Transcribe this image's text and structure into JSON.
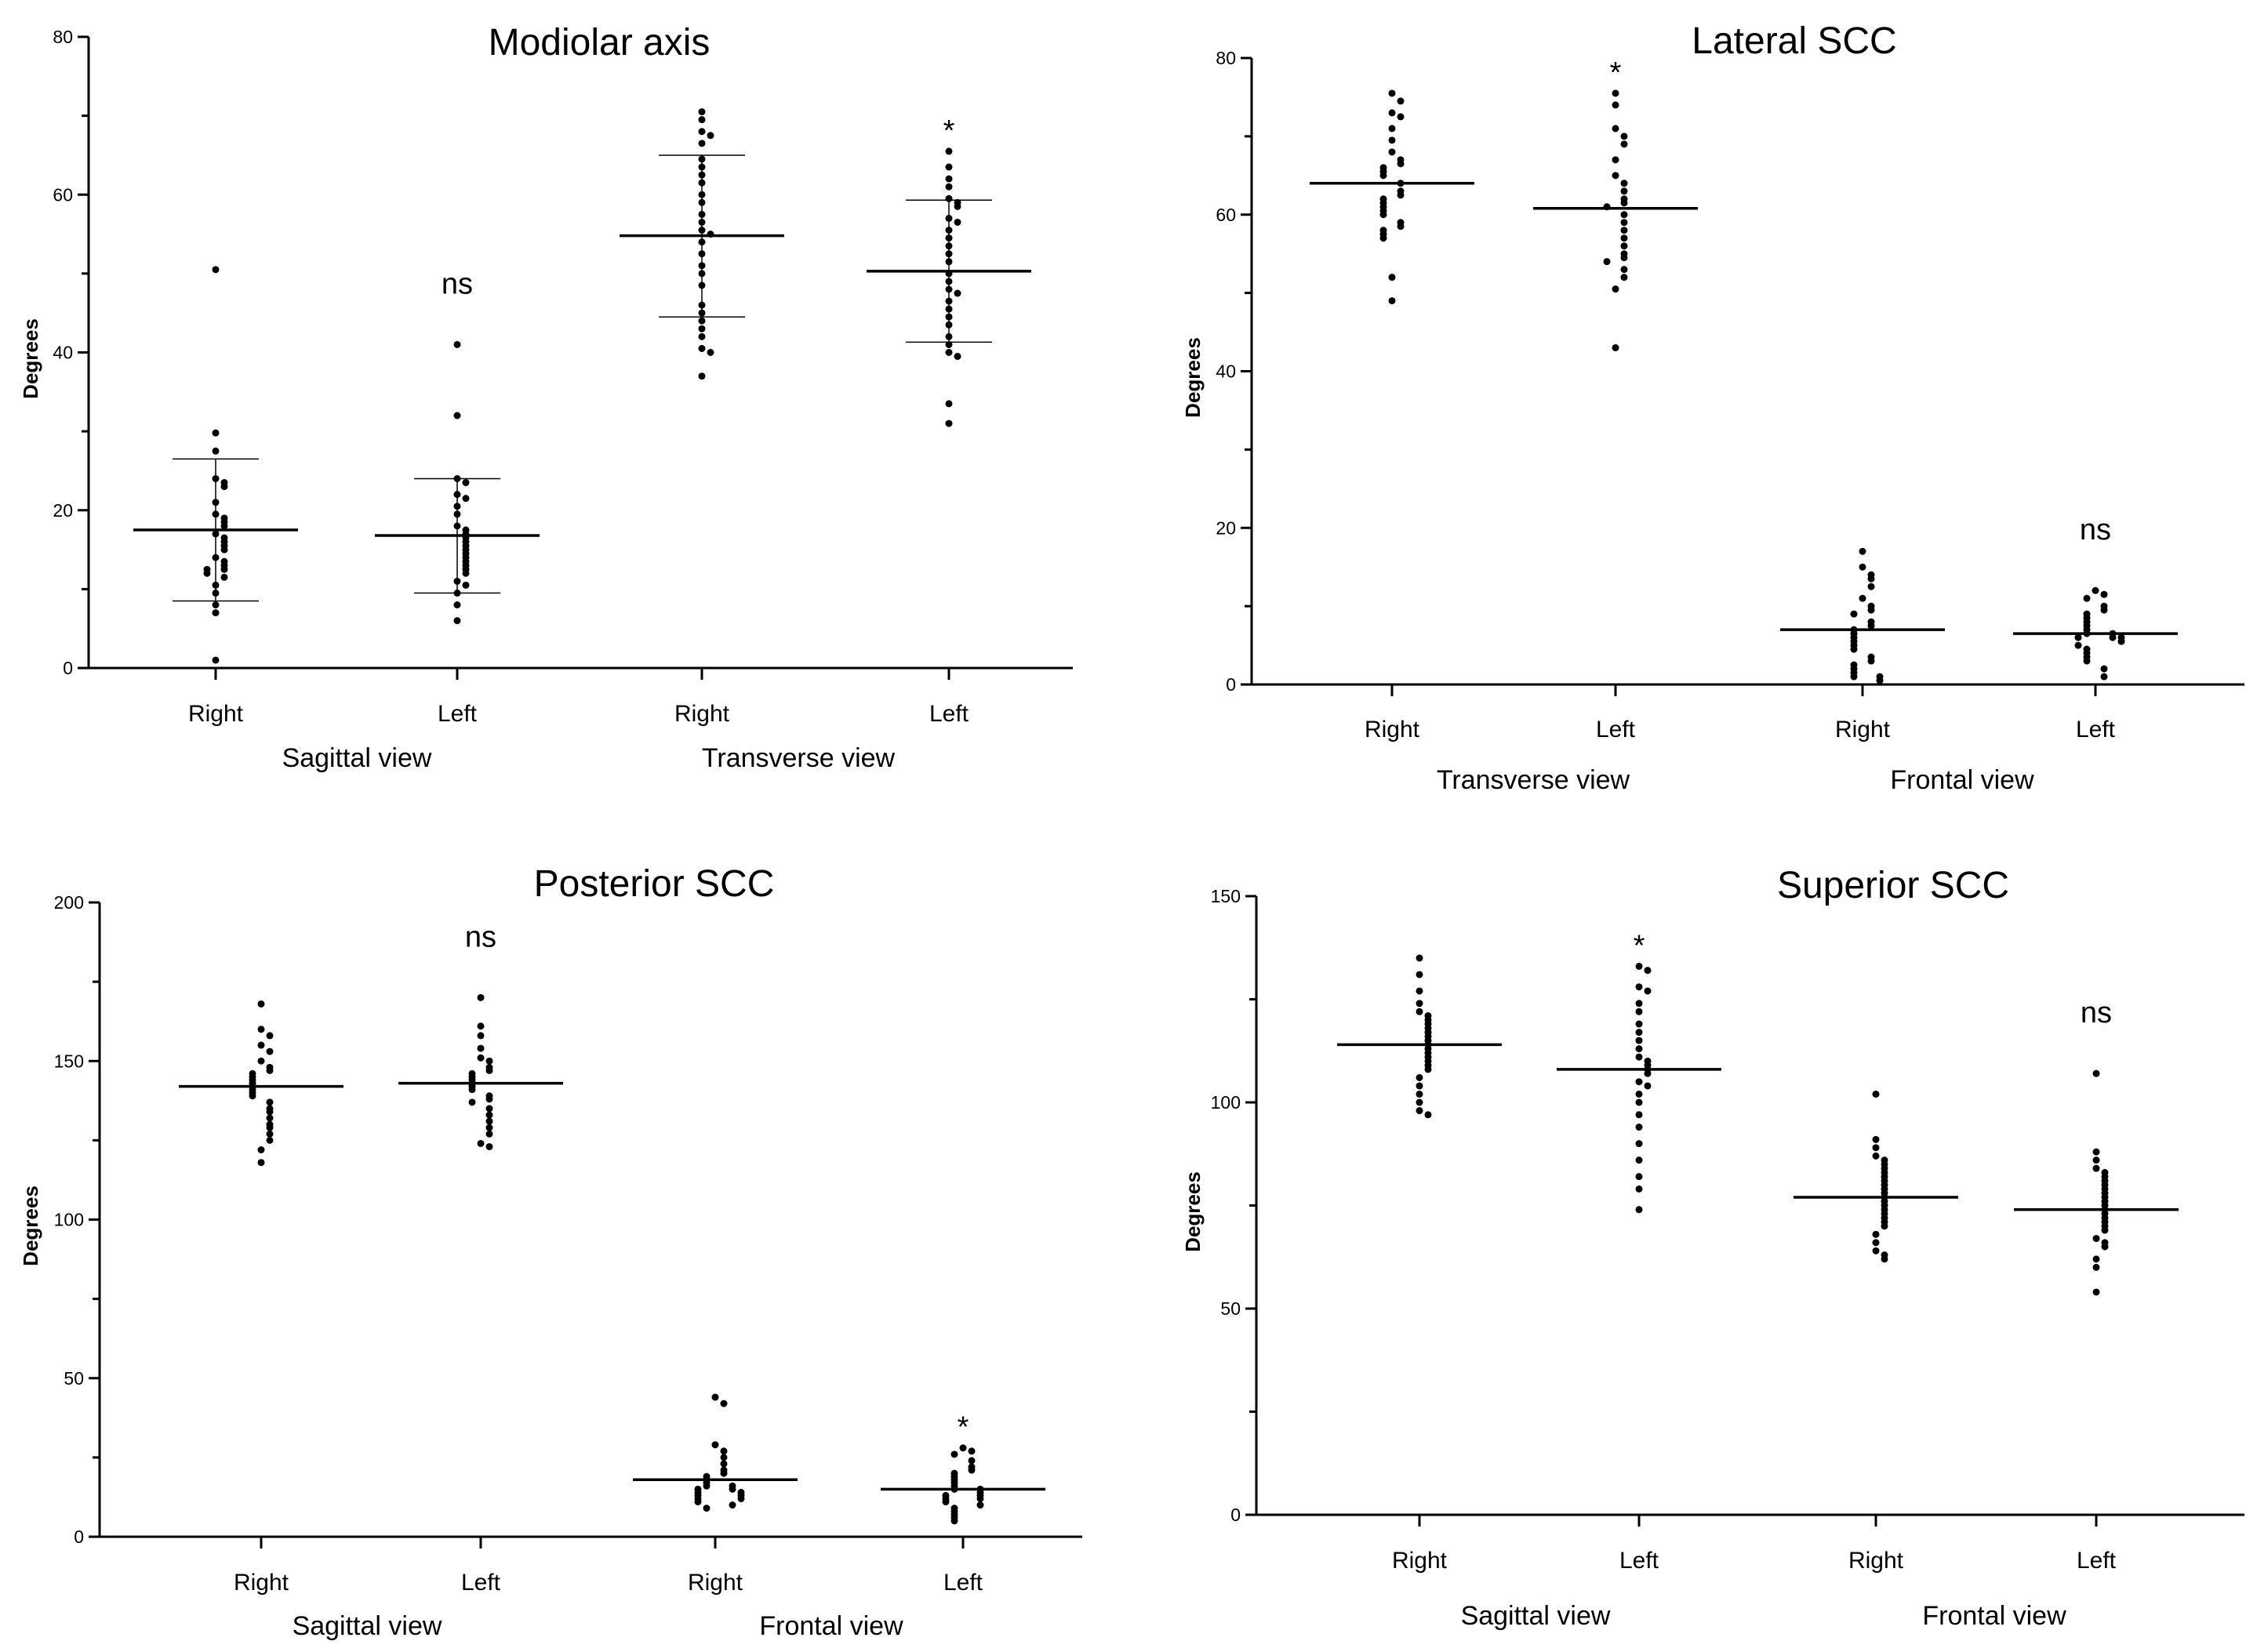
{
  "chart_data": [
    {
      "type": "scatter",
      "title": "Modiolar axis",
      "ylabel": "Degrees",
      "ylim": [
        0,
        80
      ],
      "yticks": [
        0,
        20,
        40,
        60,
        80
      ],
      "error_bars": true,
      "groups": [
        {
          "label": "Sagittal view",
          "categories": [
            0,
            1
          ]
        },
        {
          "label": "Transverse view",
          "categories": [
            2,
            3
          ]
        }
      ],
      "categories": [
        {
          "label": "Right",
          "mean": 17.5,
          "err_low": 8.5,
          "err_high": 26.5,
          "annotation": "",
          "values": [
            50.5,
            29.8,
            27.5,
            24,
            23.5,
            23,
            21,
            19.5,
            19,
            18.5,
            18,
            17,
            16.5,
            16,
            15.5,
            15,
            14,
            13.5,
            13,
            12.5,
            12.5,
            12,
            11.5,
            10.5,
            9.5,
            8,
            7,
            1
          ]
        },
        {
          "label": "Left",
          "mean": 16.8,
          "err_low": 9.5,
          "err_high": 24,
          "annotation": "ns",
          "values": [
            41,
            32,
            24,
            23.5,
            22,
            21.5,
            20.5,
            19.5,
            18,
            17.5,
            17,
            16.5,
            16,
            15.5,
            15,
            14.5,
            14,
            13.5,
            13,
            12.5,
            12,
            11,
            10.5,
            9.5,
            8,
            6
          ]
        },
        {
          "label": "Right",
          "mean": 54.8,
          "err_low": 44.5,
          "err_high": 65,
          "annotation": "",
          "values": [
            70.5,
            69.5,
            68,
            67.5,
            66.5,
            64.5,
            63.5,
            62.5,
            61.5,
            60,
            59,
            57.5,
            56.5,
            55.5,
            55,
            54,
            52.5,
            51,
            50,
            48.5,
            46,
            45,
            44,
            43,
            42,
            40.5,
            40,
            37
          ]
        },
        {
          "label": "Left",
          "mean": 50.3,
          "err_low": 41.3,
          "err_high": 59.3,
          "annotation": "*",
          "values": [
            65.5,
            63.5,
            62,
            61,
            59.5,
            59,
            58.5,
            57,
            56.5,
            55.5,
            54.5,
            53.5,
            52.5,
            51.5,
            50,
            49,
            48,
            47.5,
            46.5,
            45.5,
            44.5,
            43.5,
            42,
            41,
            40,
            39.5,
            33.5,
            31
          ]
        }
      ]
    },
    {
      "type": "scatter",
      "title": "Lateral SCC",
      "ylabel": "Degrees",
      "ylim": [
        0,
        80
      ],
      "yticks": [
        0,
        20,
        40,
        60,
        80
      ],
      "error_bars": false,
      "groups": [
        {
          "label": "Transverse view",
          "categories": [
            0,
            1
          ]
        },
        {
          "label": "Frontal view",
          "categories": [
            2,
            3
          ]
        }
      ],
      "categories": [
        {
          "label": "Right",
          "mean": 64,
          "annotation": "",
          "values": [
            75.5,
            74.5,
            73,
            72.5,
            71,
            69.5,
            68,
            67,
            66.5,
            66,
            65.5,
            65,
            64,
            63,
            62.5,
            62,
            61.5,
            61,
            60.5,
            60,
            59,
            58.5,
            58,
            57.5,
            57,
            52,
            49
          ]
        },
        {
          "label": "Left",
          "mean": 60.8,
          "annotation": "*",
          "values": [
            75.5,
            74,
            71,
            70,
            69,
            67,
            65,
            64,
            63,
            62,
            61.5,
            61,
            60,
            59,
            58,
            57,
            56,
            55,
            54.5,
            54,
            53,
            52,
            50.5,
            43
          ]
        },
        {
          "label": "Right",
          "mean": 7,
          "annotation": "",
          "values": [
            17,
            15,
            14,
            13.5,
            12.5,
            11,
            10,
            9.5,
            9,
            8,
            7.5,
            7,
            6.5,
            6,
            5.5,
            5,
            4.5,
            3.5,
            3,
            2.5,
            2,
            1.5,
            1,
            1,
            0.5
          ]
        },
        {
          "label": "Left",
          "mean": 6.5,
          "annotation": "ns",
          "values": [
            12,
            11.5,
            11,
            10,
            9.5,
            9,
            8.5,
            8,
            7.5,
            7,
            6.5,
            6.5,
            6,
            6,
            6,
            5.5,
            5,
            4.5,
            4,
            3.5,
            3,
            2,
            1
          ]
        }
      ]
    },
    {
      "type": "scatter",
      "title": "Posterior SCC",
      "ylabel": "Degrees",
      "ylim": [
        0,
        200
      ],
      "yticks": [
        0,
        50,
        100,
        150,
        200
      ],
      "error_bars": false,
      "groups": [
        {
          "label": "Sagittal view",
          "categories": [
            0,
            1
          ]
        },
        {
          "label": "Frontal view",
          "categories": [
            2,
            3
          ]
        }
      ],
      "categories": [
        {
          "label": "Right",
          "mean": 142,
          "annotation": "",
          "values": [
            168,
            160,
            158,
            155,
            153,
            150,
            148,
            147,
            146,
            145,
            144,
            143,
            142,
            141,
            140,
            139,
            137,
            135,
            134,
            132,
            130,
            129,
            127,
            125,
            122,
            118
          ]
        },
        {
          "label": "Left",
          "mean": 143,
          "annotation": "ns",
          "values": [
            170,
            161,
            158,
            154,
            151,
            150,
            148,
            147,
            146,
            145,
            144,
            143,
            142,
            141,
            139,
            138,
            137,
            135,
            133,
            131,
            129,
            127,
            124,
            123
          ]
        },
        {
          "label": "Right",
          "mean": 18,
          "annotation": "",
          "values": [
            44,
            42,
            29,
            27,
            25,
            23,
            21,
            20,
            19,
            18,
            17,
            16,
            16,
            15,
            15,
            14,
            14,
            13,
            13,
            12,
            12,
            11,
            10,
            9
          ]
        },
        {
          "label": "Left",
          "mean": 15,
          "annotation": "*",
          "values": [
            28,
            27,
            26,
            24,
            22,
            21,
            20,
            19,
            18,
            17,
            16,
            15,
            15,
            14,
            13,
            13,
            12,
            12,
            11,
            10,
            9,
            8,
            7,
            6,
            5
          ]
        }
      ]
    },
    {
      "type": "scatter",
      "title": "Superior SCC",
      "ylabel": "Degrees",
      "ylim": [
        0,
        150
      ],
      "yticks": [
        0,
        50,
        100,
        150
      ],
      "error_bars": false,
      "groups": [
        {
          "label": "Sagittal view",
          "categories": [
            0,
            1
          ]
        },
        {
          "label": "Frontal view",
          "categories": [
            2,
            3
          ]
        }
      ],
      "categories": [
        {
          "label": "Right",
          "mean": 114,
          "annotation": "",
          "values": [
            135,
            131,
            127,
            124,
            122,
            121,
            120,
            119,
            118,
            117,
            116,
            115,
            114,
            113,
            112,
            111,
            110,
            109,
            108,
            106,
            104,
            102,
            100,
            98,
            97
          ]
        },
        {
          "label": "Left",
          "mean": 108,
          "annotation": "*",
          "values": [
            133,
            132,
            128,
            127,
            124,
            122,
            119,
            117,
            115,
            113,
            111,
            110,
            109,
            108,
            107,
            105,
            104,
            102,
            100,
            97,
            94,
            90,
            86,
            82,
            79,
            74
          ]
        },
        {
          "label": "Right",
          "mean": 77,
          "annotation": "",
          "values": [
            102,
            91,
            89,
            87,
            86,
            85,
            84,
            83,
            82,
            81,
            80,
            79,
            78,
            77,
            76,
            75,
            74,
            73,
            72,
            71,
            70,
            68,
            66,
            64,
            63,
            62
          ]
        },
        {
          "label": "Left",
          "mean": 74,
          "annotation": "ns",
          "values": [
            107,
            88,
            86,
            84,
            83,
            82,
            81,
            80,
            79,
            78,
            77,
            76,
            75,
            74,
            73,
            72,
            71,
            70,
            69,
            67,
            66,
            65,
            62,
            60,
            54
          ]
        }
      ]
    }
  ]
}
